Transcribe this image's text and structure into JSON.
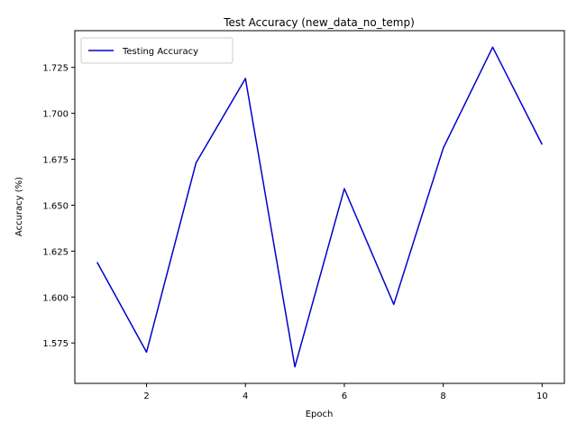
{
  "chart_data": {
    "type": "line",
    "title": "Test Accuracy (new_data_no_temp)",
    "xlabel": "Epoch",
    "ylabel": "Accuracy (%)",
    "xlim": [
      0.55,
      10.45
    ],
    "ylim": [
      1.553,
      1.745
    ],
    "xticks": [
      2,
      4,
      6,
      8,
      10
    ],
    "yticks": [
      1.575,
      1.6,
      1.625,
      1.65,
      1.675,
      1.7,
      1.725
    ],
    "xtick_labels": [
      "2",
      "4",
      "6",
      "8",
      "10"
    ],
    "ytick_labels": [
      "1.575",
      "1.600",
      "1.625",
      "1.650",
      "1.675",
      "1.700",
      "1.725"
    ],
    "grid": false,
    "legend_position": "top-left",
    "series": [
      {
        "name": "Testing Accuracy",
        "color": "#0000cc",
        "x": [
          1,
          2,
          3,
          4,
          5,
          6,
          7,
          8,
          9,
          10
        ],
        "y": [
          1.619,
          1.57,
          1.673,
          1.719,
          1.562,
          1.659,
          1.596,
          1.681,
          1.736,
          1.683
        ]
      }
    ]
  }
}
